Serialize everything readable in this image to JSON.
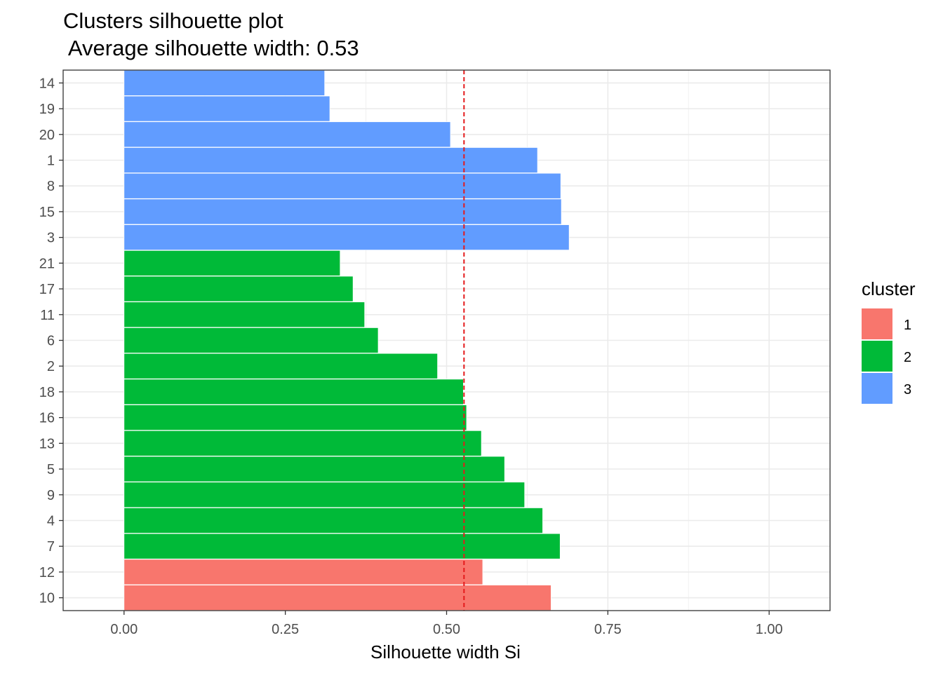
{
  "chart_data": {
    "type": "bar",
    "orientation": "horizontal",
    "title": "Clusters silhouette plot",
    "subtitle": " Average silhouette width: 0.53",
    "xlabel": "Silhouette width Si",
    "ylabel": "",
    "xlim": [
      -0.0944,
      1.0944
    ],
    "xticks": [
      0.0,
      0.25,
      0.5,
      0.75,
      1.0
    ],
    "xtick_labels": [
      "0.00",
      "0.25",
      "0.50",
      "0.75",
      "1.00"
    ],
    "grid": true,
    "average_line": 0.527,
    "average_line_color": "#e41a1c",
    "cluster_colors": {
      "1": "#F8766D",
      "2": "#00BA38",
      "3": "#619CFF"
    },
    "categories": [
      "14",
      "19",
      "20",
      "1",
      "8",
      "15",
      "3",
      "21",
      "17",
      "11",
      "6",
      "2",
      "18",
      "16",
      "13",
      "5",
      "9",
      "4",
      "7",
      "12",
      "10"
    ],
    "clusters": [
      "3",
      "3",
      "3",
      "3",
      "3",
      "3",
      "3",
      "2",
      "2",
      "2",
      "2",
      "2",
      "2",
      "2",
      "2",
      "2",
      "2",
      "2",
      "2",
      "1",
      "1"
    ],
    "values": [
      0.311,
      0.319,
      0.506,
      0.641,
      0.677,
      0.678,
      0.69,
      0.335,
      0.355,
      0.373,
      0.394,
      0.486,
      0.526,
      0.531,
      0.554,
      0.59,
      0.621,
      0.649,
      0.676,
      0.556,
      0.662
    ],
    "legend": {
      "title": "cluster",
      "placement": "right",
      "items": [
        {
          "label": "1",
          "color": "#F8766D"
        },
        {
          "label": "2",
          "color": "#00BA38"
        },
        {
          "label": "3",
          "color": "#619CFF"
        }
      ]
    }
  }
}
